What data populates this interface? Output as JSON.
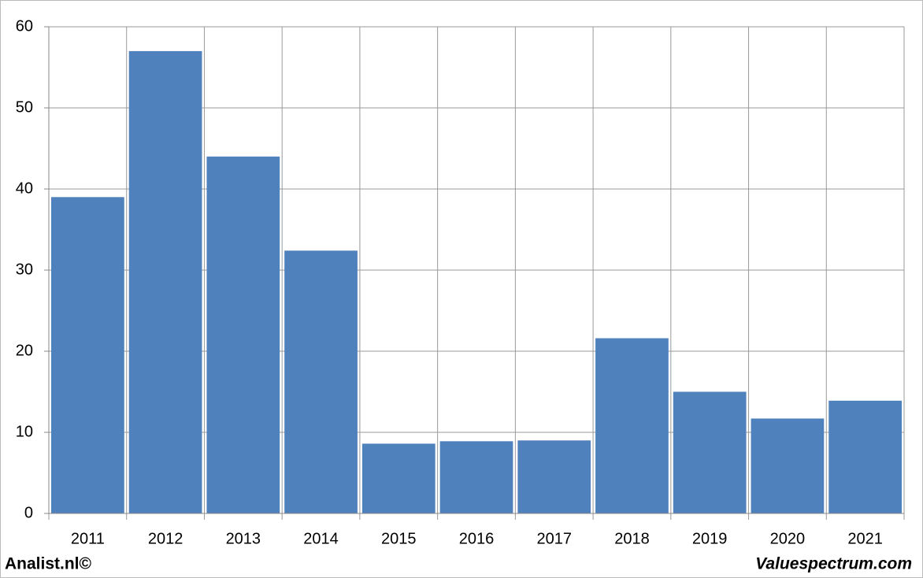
{
  "chart_data": {
    "type": "bar",
    "categories": [
      "2011",
      "2012",
      "2013",
      "2014",
      "2015",
      "2016",
      "2017",
      "2018",
      "2019",
      "2020",
      "2021"
    ],
    "values": [
      39,
      57,
      44,
      32.4,
      8.6,
      8.9,
      9.0,
      21.6,
      15.0,
      11.7,
      13.9
    ],
    "color": "#4f81bd",
    "ylim": [
      0,
      60
    ],
    "yticks": [
      0,
      10,
      20,
      30,
      40,
      50,
      60
    ],
    "grid": true,
    "watermarks": [
      "Analist.nl©",
      "Valuespectrum.com"
    ]
  }
}
